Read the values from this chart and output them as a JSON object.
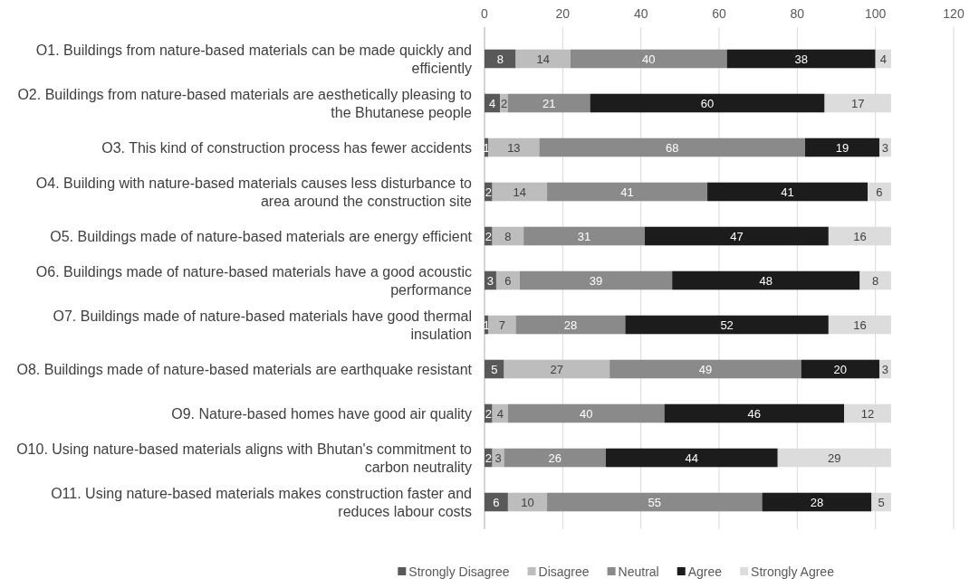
{
  "chart_data": {
    "type": "bar",
    "orientation": "horizontal",
    "stacked": true,
    "data_labels": true,
    "grid": "x",
    "legend": "bottom",
    "xlim": [
      0,
      120
    ],
    "xticks": [
      0,
      20,
      40,
      60,
      80,
      100,
      120
    ],
    "categories": [
      "O1. Buildings from nature-based materials can be made quickly and efficiently",
      "O2. Buildings from nature-based materials are aesthetically pleasing to the Bhutanese people",
      "O3. This kind of construction process has fewer accidents",
      "O4. Building with nature-based materials causes less disturbance to area around the construction site",
      "O5. Buildings made of nature-based materials are energy efficient",
      "O6. Buildings made of nature-based materials have a good acoustic performance",
      "O7. Buildings made of nature-based materials have good thermal insulation",
      "O8. Buildings made of nature-based materials are earthquake resistant",
      "O9. Nature-based homes have good air quality",
      "O10. Using nature-based materials aligns with Bhutan's commitment to carbon neutrality",
      "O11. Using nature-based materials makes construction faster and reduces labour costs"
    ],
    "series": [
      {
        "name": "Strongly Disagree",
        "color": "#595959",
        "values": [
          8,
          4,
          1,
          2,
          2,
          3,
          1,
          5,
          2,
          2,
          6
        ]
      },
      {
        "name": "Disagree",
        "color": "#bdbdbd",
        "values": [
          14,
          2,
          13,
          14,
          8,
          6,
          7,
          27,
          4,
          3,
          10
        ]
      },
      {
        "name": "Neutral",
        "color": "#8a8a8a",
        "values": [
          40,
          21,
          68,
          41,
          31,
          39,
          28,
          49,
          40,
          26,
          55
        ]
      },
      {
        "name": "Agree",
        "color": "#1c1c1c",
        "values": [
          38,
          60,
          19,
          41,
          47,
          48,
          52,
          20,
          46,
          44,
          28
        ]
      },
      {
        "name": "Strongly Agree",
        "color": "#dcdcdc",
        "values": [
          4,
          17,
          3,
          6,
          16,
          8,
          16,
          3,
          12,
          29,
          5
        ]
      }
    ]
  }
}
